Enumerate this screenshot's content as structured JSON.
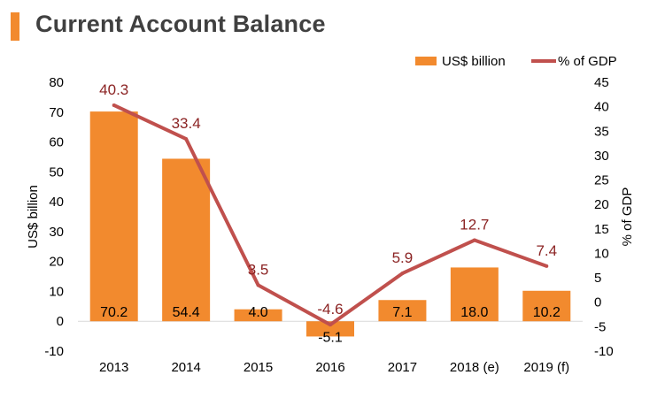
{
  "title": "Current Account Balance",
  "colors": {
    "bar": "#f28a2e",
    "line": "#c0504d",
    "line_label": "#8b2323",
    "title_accent": "#f28a2e"
  },
  "chart_data": {
    "type": "bar+line",
    "categories": [
      "2013",
      "2014",
      "2015",
      "2016",
      "2017",
      "2018 (e)",
      "2019 (f)"
    ],
    "series": [
      {
        "name": "US$ billion",
        "type": "bar",
        "axis": "left",
        "values": [
          70.2,
          54.4,
          4.0,
          -5.1,
          7.1,
          18.0,
          10.2
        ],
        "labels": [
          "70.2",
          "54.4",
          "4.0",
          "-5.1",
          "7.1",
          "18.0",
          "10.2"
        ]
      },
      {
        "name": "% of GDP",
        "type": "line",
        "axis": "right",
        "values": [
          40.3,
          33.4,
          3.5,
          -4.6,
          5.9,
          12.7,
          7.4
        ],
        "labels": [
          "40.3",
          "33.4",
          "3.5",
          "-4.6",
          "5.9",
          "12.7",
          "7.4"
        ]
      }
    ],
    "ylabel_left": "US$ billion",
    "ylabel_right": "% of GDP",
    "ylim_left": [
      -10,
      80
    ],
    "ylim_right": [
      -10,
      45
    ],
    "yticks_left": [
      "80",
      "70",
      "60",
      "50",
      "40",
      "30",
      "20",
      "10",
      "0",
      "-10"
    ],
    "yticks_right": [
      "45",
      "40",
      "35",
      "30",
      "25",
      "20",
      "15",
      "10",
      "5",
      "0",
      "-5",
      "-10"
    ],
    "legend": [
      "US$ billion",
      "% of GDP"
    ],
    "legend_position": "top-right"
  }
}
